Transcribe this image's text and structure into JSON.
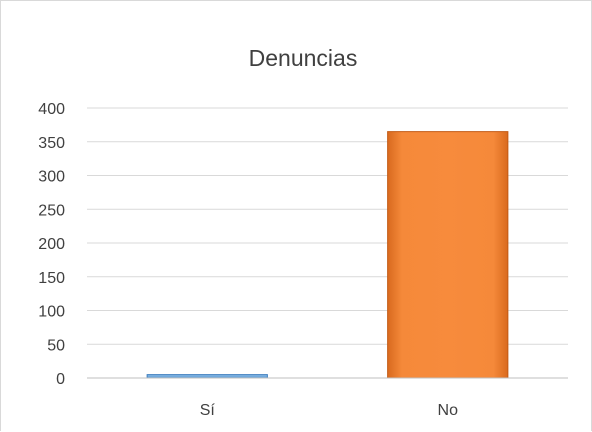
{
  "chart_data": {
    "type": "bar",
    "title": "Denuncias",
    "categories": [
      "Sí",
      "No"
    ],
    "values": [
      5,
      365
    ],
    "colors": [
      "#5b9bd5",
      "#f08a3c"
    ],
    "edge_colors": [
      "#3f7fbf",
      "#c25a14"
    ],
    "ylim": [
      0,
      400
    ],
    "yticks": [
      0,
      50,
      100,
      150,
      200,
      250,
      300,
      350,
      400
    ],
    "grid": true,
    "legend": "none",
    "xlabel": "",
    "ylabel": ""
  }
}
